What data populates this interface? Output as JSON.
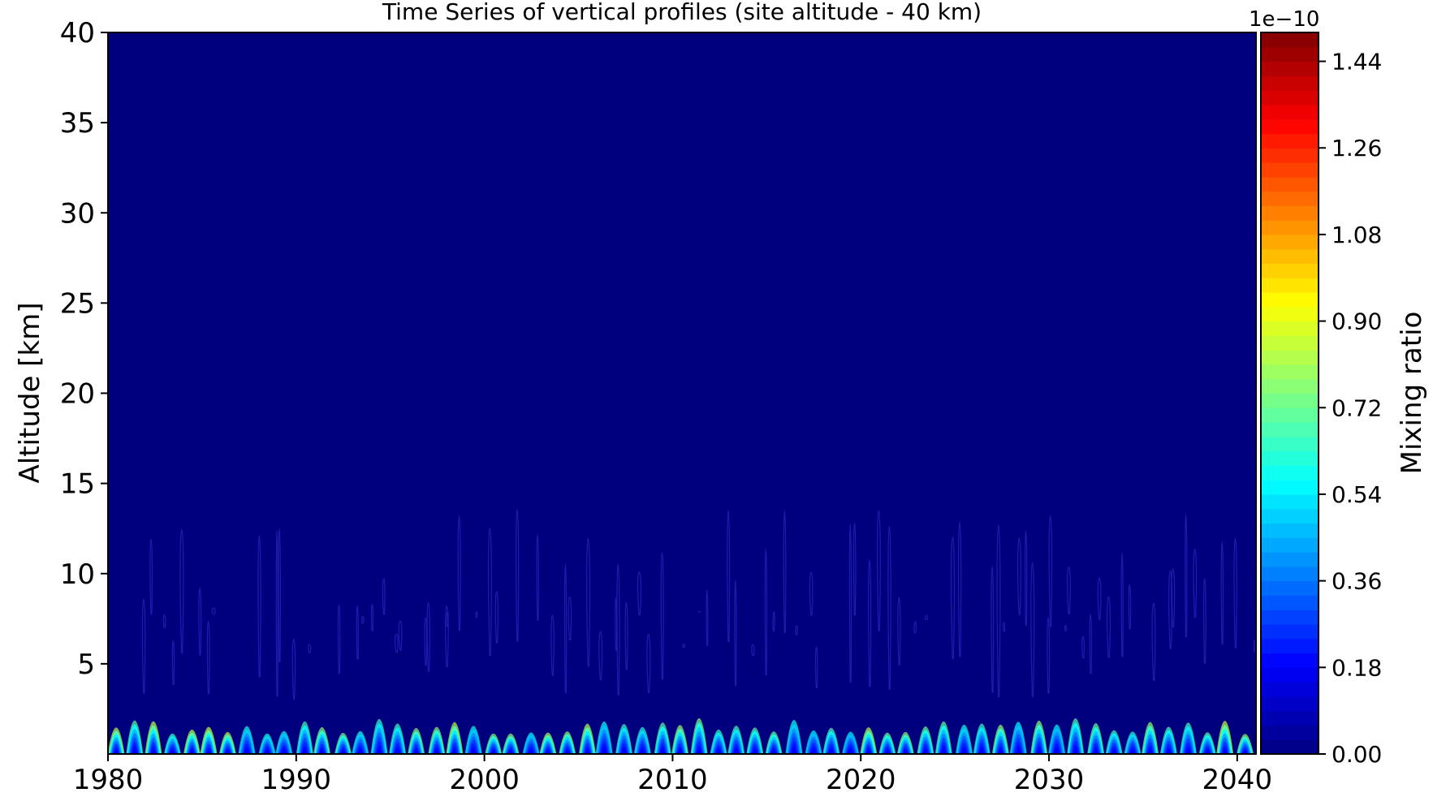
{
  "chart_data": {
    "type": "heatmap",
    "title": "Time Series of vertical profiles (site altitude - 40 km)",
    "xlabel": "",
    "ylabel": "Altitude [km]",
    "xlim": [
      1980,
      2041
    ],
    "ylim": [
      0,
      40
    ],
    "x_ticks": [
      "1980",
      "1990",
      "2000",
      "2010",
      "2020",
      "2030",
      "2040"
    ],
    "y_ticks": [
      "5",
      "10",
      "15",
      "20",
      "25",
      "30",
      "35",
      "40"
    ],
    "colorbar": {
      "label": "Mixing ratio",
      "offset_text": "1e−10",
      "range": [
        0.0,
        1.5
      ],
      "ticks": [
        "0.00",
        "0.18",
        "0.36",
        "0.54",
        "0.72",
        "0.90",
        "1.08",
        "1.26",
        "1.44"
      ],
      "colormap": "jet",
      "levels": 50
    },
    "background_color": "#00007f",
    "description_values": {
      "seasonal_peaks_per_year": 1,
      "peak_max_altitude_km": 4,
      "faint_contours_max_altitude_km": 16,
      "peak_near_surface_mixing_ratio": 0.7
    }
  }
}
